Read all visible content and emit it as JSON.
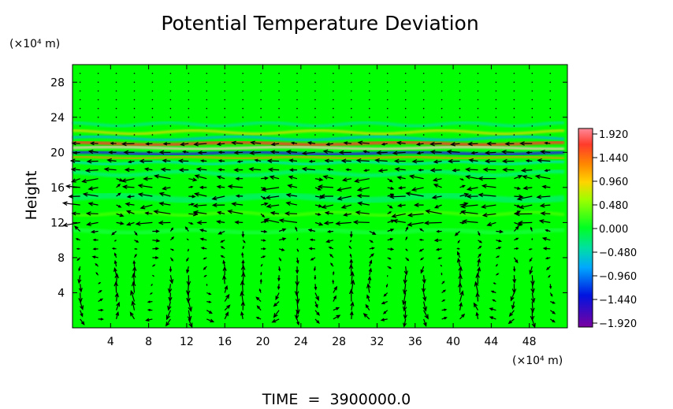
{
  "chart_data": {
    "type": "heatmap",
    "title": "Potential Temperature Deviation",
    "ylabel": "Height",
    "y_unit": "(×10⁴ m)",
    "x_unit": "(×10⁴ m)",
    "footer": "TIME  =  3900000.0",
    "x_ticks": [
      4,
      8,
      12,
      16,
      20,
      24,
      28,
      32,
      36,
      40,
      44,
      48
    ],
    "y_ticks": [
      4,
      8,
      12,
      16,
      20,
      24,
      28
    ],
    "xlim": [
      0,
      52
    ],
    "ylim": [
      0,
      30
    ],
    "colorbar": {
      "labels": [
        "1.920",
        "1.440",
        "0.960",
        "0.480",
        "0.000",
        "−0.480",
        "−0.960",
        "−1.440",
        "−1.920"
      ],
      "range": [
        -1.92,
        1.92
      ]
    },
    "background_color": "#00ff00",
    "overlay": "velocity vectors (arrows)"
  }
}
